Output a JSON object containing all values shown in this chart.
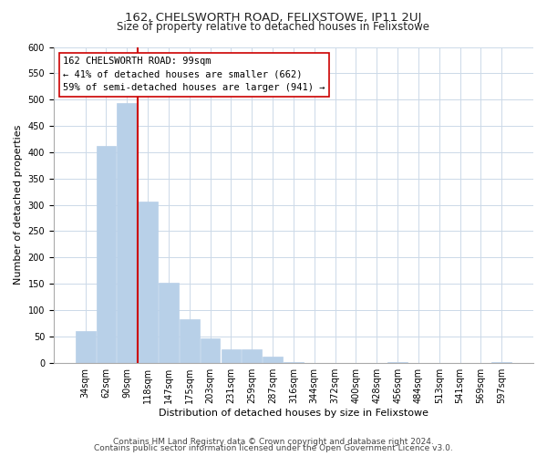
{
  "title": "162, CHELSWORTH ROAD, FELIXSTOWE, IP11 2UJ",
  "subtitle": "Size of property relative to detached houses in Felixstowe",
  "xlabel": "Distribution of detached houses by size in Felixstowe",
  "ylabel": "Number of detached properties",
  "bar_labels": [
    "34sqm",
    "62sqm",
    "90sqm",
    "118sqm",
    "147sqm",
    "175sqm",
    "203sqm",
    "231sqm",
    "259sqm",
    "287sqm",
    "316sqm",
    "344sqm",
    "372sqm",
    "400sqm",
    "428sqm",
    "456sqm",
    "484sqm",
    "513sqm",
    "541sqm",
    "569sqm",
    "597sqm"
  ],
  "bar_values": [
    60,
    412,
    493,
    307,
    152,
    82,
    46,
    26,
    26,
    11,
    1,
    0,
    0,
    0,
    0,
    2,
    0,
    0,
    0,
    0,
    2
  ],
  "bar_color": "#b8d0e8",
  "bar_edge_color": "#b8d0e8",
  "vline_color": "#cc0000",
  "annotation_text": "162 CHELSWORTH ROAD: 99sqm\n← 41% of detached houses are smaller (662)\n59% of semi-detached houses are larger (941) →",
  "annotation_box_color": "#ffffff",
  "annotation_box_edge": "#cc0000",
  "ylim": [
    0,
    600
  ],
  "yticks": [
    0,
    50,
    100,
    150,
    200,
    250,
    300,
    350,
    400,
    450,
    500,
    550,
    600
  ],
  "footer_line1": "Contains HM Land Registry data © Crown copyright and database right 2024.",
  "footer_line2": "Contains public sector information licensed under the Open Government Licence v3.0.",
  "bg_color": "#ffffff",
  "grid_color": "#ccd9e8",
  "title_fontsize": 9.5,
  "subtitle_fontsize": 8.5,
  "axis_label_fontsize": 8,
  "tick_fontsize": 7,
  "annotation_fontsize": 7.5,
  "footer_fontsize": 6.5
}
